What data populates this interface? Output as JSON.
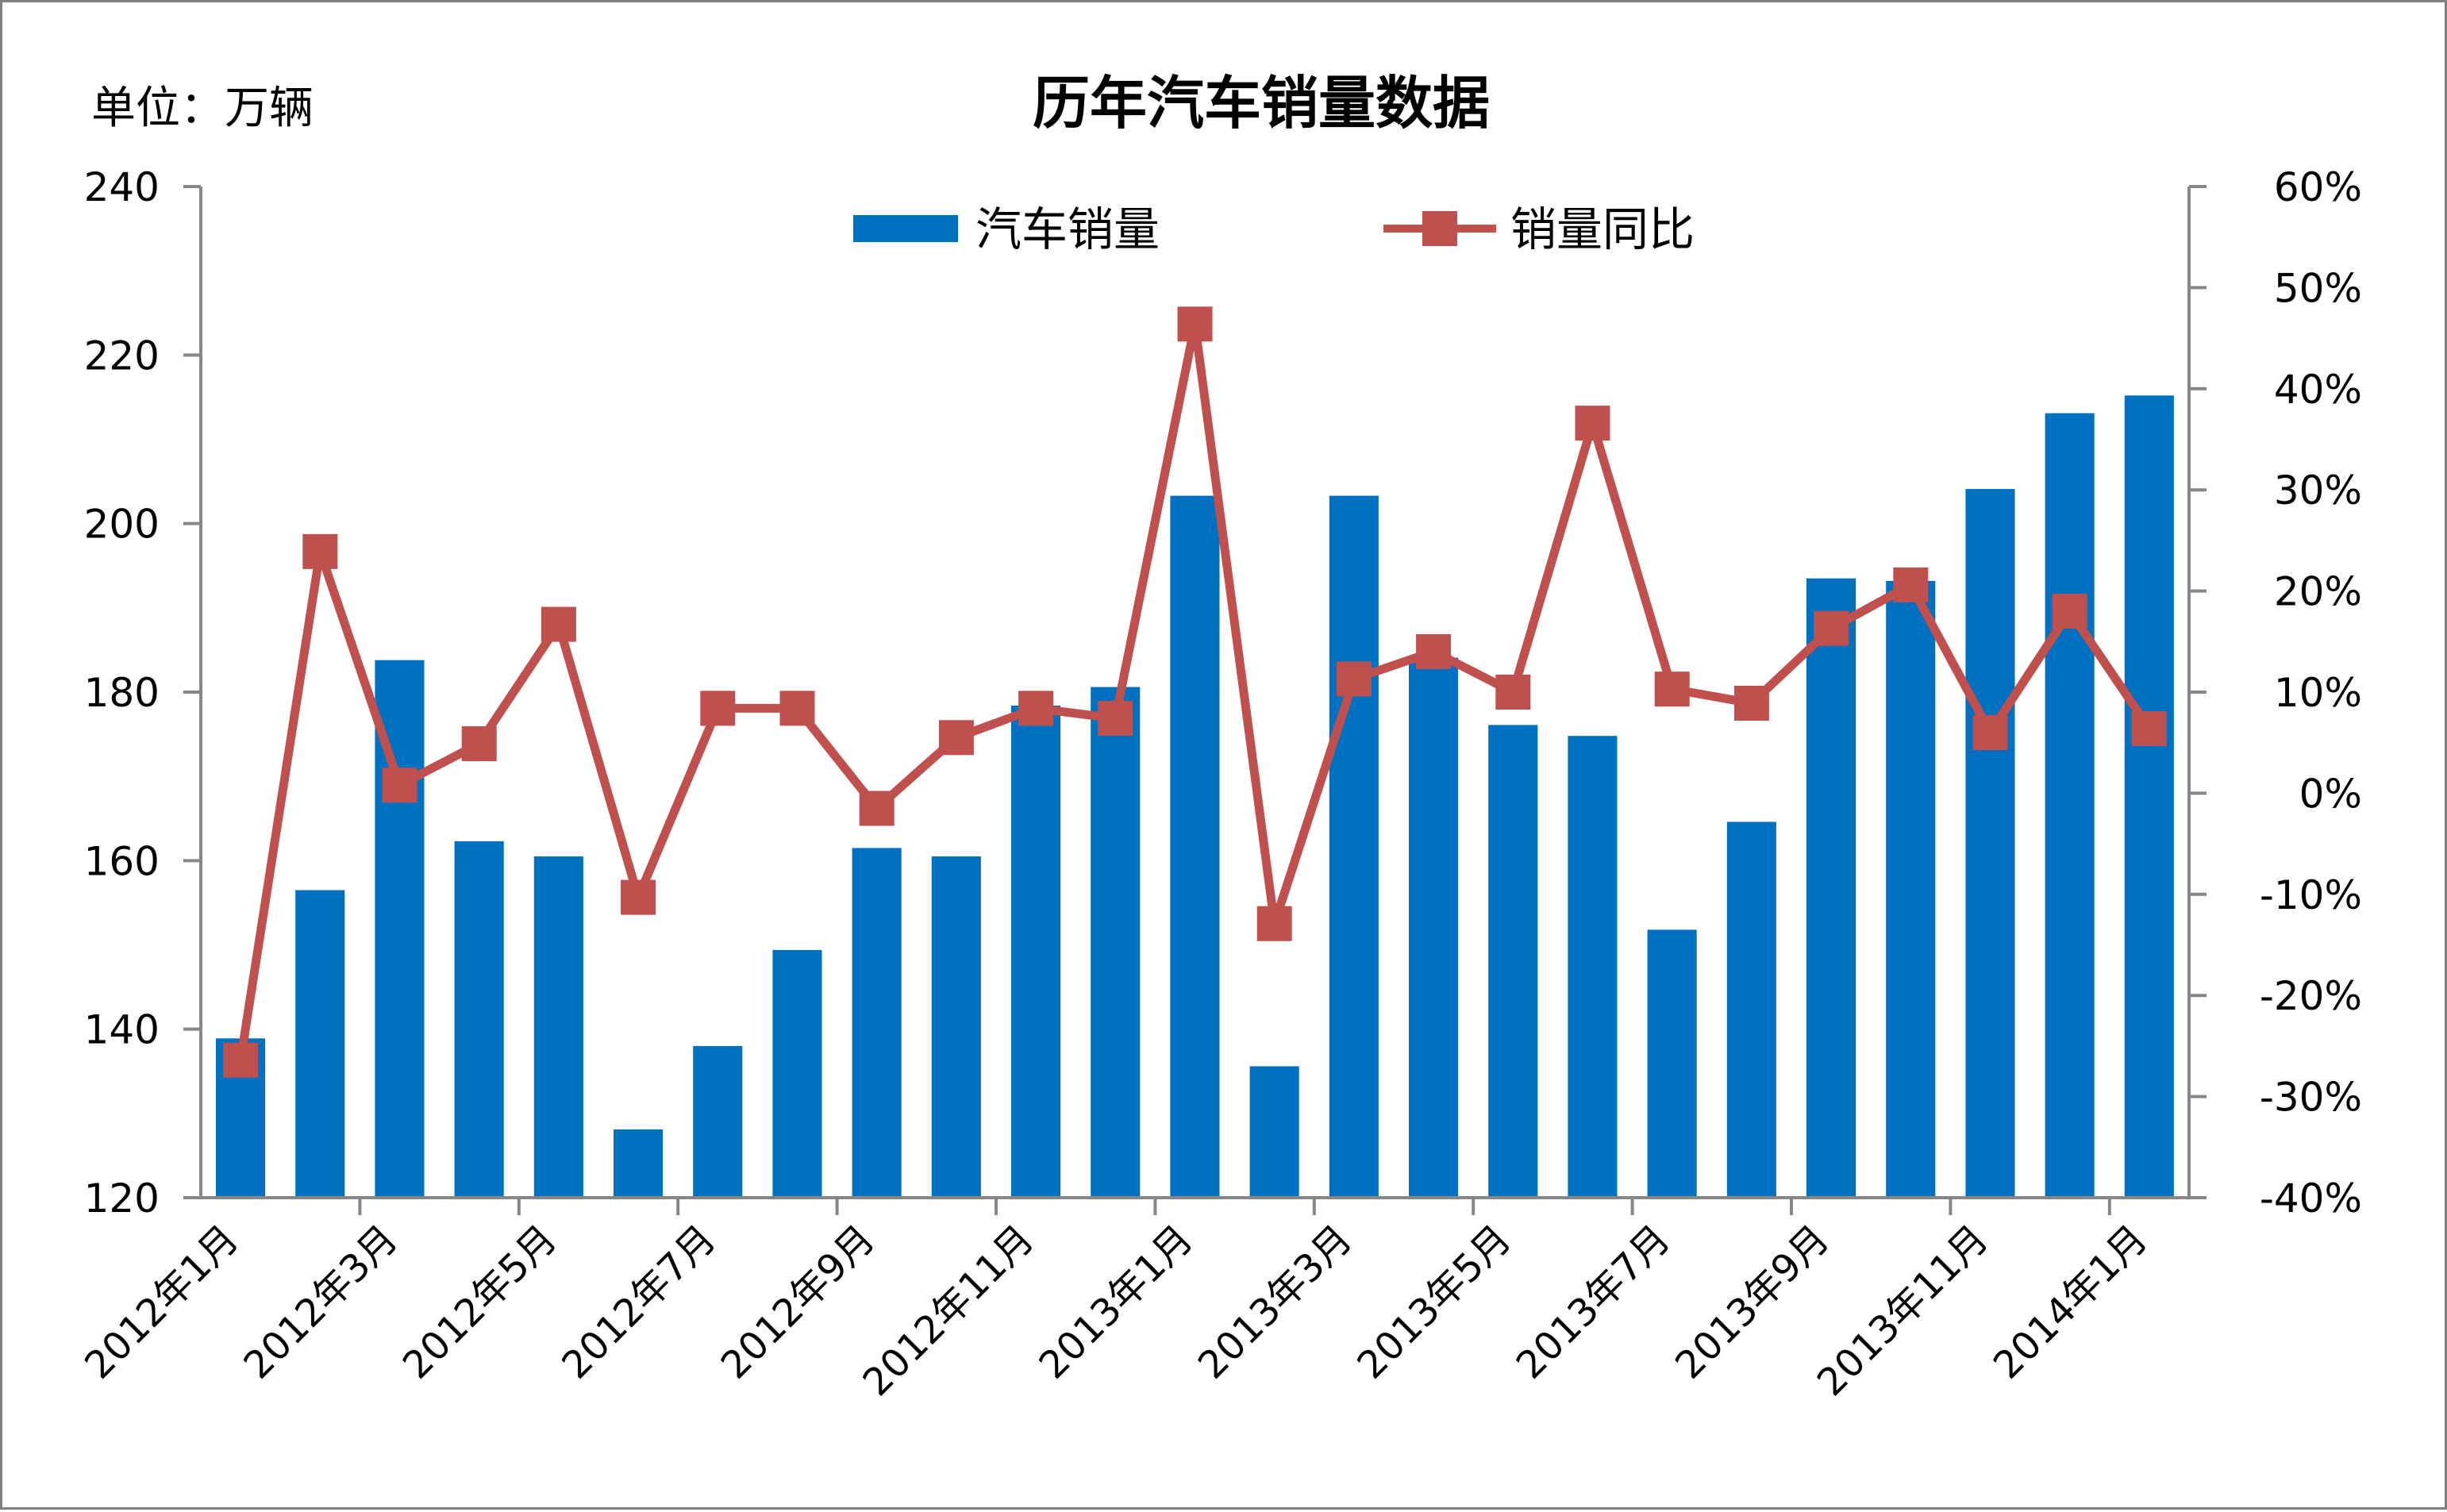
{
  "chart_data": {
    "type": "bar+line",
    "title": "历年汽车销量数据",
    "unit_label": "单位：万辆",
    "categories": [
      "2012年1月",
      "2012年2月",
      "2012年3月",
      "2012年4月",
      "2012年5月",
      "2012年6月",
      "2012年7月",
      "2012年8月",
      "2012年9月",
      "2012年10月",
      "2012年11月",
      "2012年12月",
      "2013年1月",
      "2013年2月",
      "2013年3月",
      "2013年4月",
      "2013年5月",
      "2013年6月",
      "2013年7月",
      "2013年8月",
      "2013年9月",
      "2013年10月",
      "2013年11月",
      "2013年12月",
      "2014年1月"
    ],
    "x_tick_labels": [
      "2012年1月",
      "2012年3月",
      "2012年5月",
      "2012年7月",
      "2012年9月",
      "2012年11月",
      "2013年1月",
      "2013年3月",
      "2013年5月",
      "2013年7月",
      "2013年9月",
      "2013年11月",
      "2014年1月"
    ],
    "series": [
      {
        "name": "汽车销量",
        "type": "bar",
        "axis": "left",
        "color": "#0070c0",
        "values": [
          138.9,
          156.5,
          183.8,
          162.3,
          160.5,
          128.1,
          138.0,
          149.4,
          161.5,
          160.5,
          178.4,
          180.6,
          203.3,
          135.6,
          203.3,
          184.1,
          176.1,
          174.8,
          151.8,
          164.6,
          193.5,
          193.2,
          204.1,
          213.1,
          215.2
        ]
      },
      {
        "name": "销量同比",
        "type": "line",
        "axis": "right",
        "color": "#c0504d",
        "values": [
          -0.264,
          0.239,
          0.008,
          0.049,
          0.167,
          -0.103,
          0.084,
          0.084,
          -0.015,
          0.055,
          0.084,
          0.074,
          0.464,
          -0.129,
          0.113,
          0.14,
          0.1,
          0.366,
          0.103,
          0.089,
          0.163,
          0.206,
          0.06,
          0.18,
          0.064
        ]
      }
    ],
    "y_left": {
      "min": 120,
      "max": 240,
      "step": 20,
      "ticks": [
        "120",
        "140",
        "160",
        "180",
        "200",
        "220",
        "240"
      ]
    },
    "y_right": {
      "min": -0.4,
      "max": 0.6,
      "step": 0.1,
      "ticks": [
        "-40%",
        "-30%",
        "-20%",
        "-10%",
        "0%",
        "10%",
        "20%",
        "30%",
        "40%",
        "50%",
        "60%"
      ]
    },
    "legend_position": "top",
    "grid": false
  }
}
